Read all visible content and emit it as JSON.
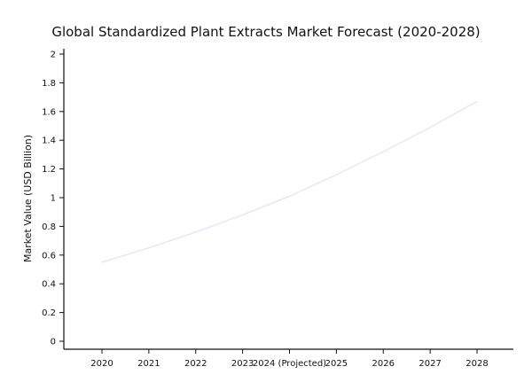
{
  "chart_data": {
    "type": "line",
    "title": "Global Standardized Plant Extracts Market Forecast (2020-2028)",
    "xlabel": "",
    "ylabel": "Market Value (USD Billion)",
    "categories": [
      "2020",
      "2021",
      "2022",
      "2023",
      "2024 (Projected)",
      "2025",
      "2026",
      "2027",
      "2028"
    ],
    "series": [
      {
        "name": "Market Value",
        "values": [
          0.55,
          0.65,
          0.76,
          0.88,
          1.01,
          1.16,
          1.32,
          1.49,
          1.67
        ]
      }
    ],
    "ylim": [
      0,
      2
    ],
    "yticks": [
      "0",
      "0.2",
      "0.4",
      "0.6",
      "0.8",
      "1",
      "1.2",
      "1.4",
      "1.6",
      "1.8",
      "2"
    ],
    "grid": false,
    "line_color": "#e6e8f8"
  }
}
